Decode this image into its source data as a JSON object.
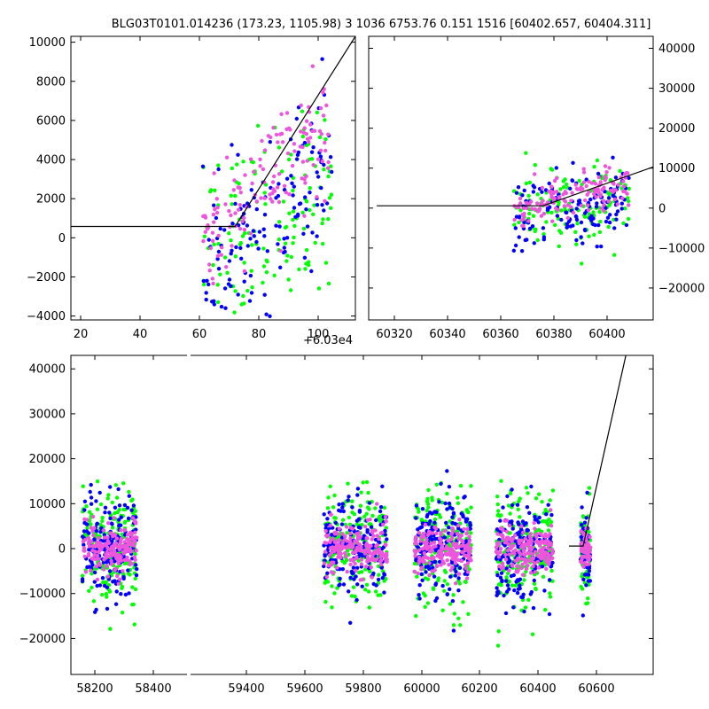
{
  "title": "BLG03T0101.014236 (173.23, 1105.98)    3 1036 6753.76 0.151 1516 [60402.657, 60404.311]",
  "colors": {
    "green": "#00ff00",
    "blue": "#0000ff",
    "pink": "#ee55dd",
    "line": "#000000"
  },
  "chart_data": [
    {
      "id": "zoom",
      "type": "scatter",
      "x_offset_label": "+6.03e4",
      "xlim": [
        16,
        113
      ],
      "ylim": [
        -4200,
        10300
      ],
      "xticks": [
        "20",
        "40",
        "60",
        "80",
        "100"
      ],
      "yticks": [
        "−4000",
        "−2000",
        "0",
        "2000",
        "4000",
        "6000",
        "8000",
        "10000"
      ],
      "model_line": {
        "x": [
          16,
          72,
          113
        ],
        "y": [
          580,
          580,
          10300
        ]
      },
      "series": [
        {
          "color": "green",
          "x_range": [
            61,
            105
          ],
          "y_mean_at_start": -1500,
          "y_mean_at_end": 3200,
          "spread": 2400
        },
        {
          "color": "blue",
          "x_range": [
            61,
            105
          ],
          "y_mean_at_start": -1800,
          "y_mean_at_end": 3800,
          "spread": 2000
        },
        {
          "color": "pink",
          "x_range": [
            61,
            105
          ],
          "y_mean_at_start": -300,
          "y_mean_at_end": 5800,
          "spread": 1400
        }
      ]
    },
    {
      "id": "season",
      "type": "scatter",
      "xlim": [
        60307,
        60413
      ],
      "ylim": [
        -28000,
        43000
      ],
      "xticks": [
        "60320",
        "60340",
        "60360",
        "60380",
        "60400"
      ],
      "yticks": [
        "−20000",
        "−10000",
        "0",
        "10000",
        "20000",
        "30000",
        "40000"
      ],
      "model_line": {
        "x": [
          60310,
          60372,
          60413
        ],
        "y": [
          580,
          580,
          10300
        ]
      },
      "series": [
        {
          "color": "green",
          "x_range": [
            60361,
            60404
          ],
          "y_mean_at_start": -2000,
          "y_mean_at_end": 2000,
          "spread": 5000
        },
        {
          "color": "blue",
          "x_range": [
            60361,
            60404
          ],
          "y_mean_at_start": -2500,
          "y_mean_at_end": 2500,
          "spread": 4500
        },
        {
          "color": "pink",
          "x_range": [
            60361,
            60404
          ],
          "y_mean_at_start": -600,
          "y_mean_at_end": 6000,
          "spread": 2500
        }
      ]
    },
    {
      "id": "full",
      "type": "scatter",
      "xlim": [
        58120,
        60680
      ],
      "ylim": [
        -28000,
        43000
      ],
      "xticks": [
        "58200",
        "58400",
        "59400",
        "59600",
        "59800",
        "60000",
        "60200",
        "60400",
        "60600"
      ],
      "yticks": [
        "−20000",
        "−10000",
        "0",
        "10000",
        "20000",
        "30000",
        "40000"
      ],
      "model_line": {
        "x": [
          60310,
          60372,
          60560
        ],
        "y": [
          580,
          580,
          43000
        ]
      },
      "seasons": [
        {
          "x_range": [
            58170,
            58410
          ]
        },
        {
          "x_range": [
            59230,
            59510
          ]
        },
        {
          "x_range": [
            59630,
            59880
          ]
        },
        {
          "x_range": [
            59990,
            60240
          ]
        },
        {
          "x_range": [
            60361,
            60404
          ]
        }
      ],
      "series": [
        {
          "color": "green",
          "spread": 6500
        },
        {
          "color": "blue",
          "spread": 5500
        },
        {
          "color": "pink",
          "spread": 2600
        }
      ]
    }
  ]
}
